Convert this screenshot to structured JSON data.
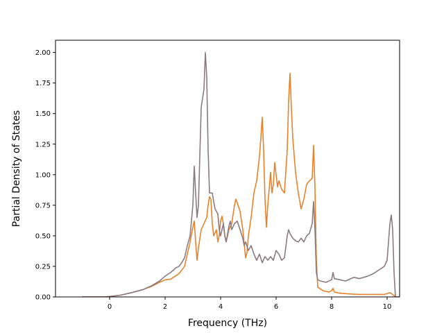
{
  "chart_data": {
    "type": "line",
    "title": "",
    "xlabel": "Frequency (THz)",
    "ylabel": "Partial Density of States",
    "xlim": [
      -1.95,
      10.45
    ],
    "ylim": [
      0,
      2.1
    ],
    "x_ticks": [
      0,
      2,
      4,
      6,
      8,
      10
    ],
    "x_tick_labels": [
      "0",
      "2",
      "4",
      "6",
      "8",
      "10"
    ],
    "y_ticks": [
      0,
      0.25,
      0.5,
      0.75,
      1.0,
      1.25,
      1.5,
      1.75,
      2.0
    ],
    "y_tick_labels": [
      "0.00",
      "0.25",
      "0.50",
      "0.75",
      "1.00",
      "1.25",
      "1.50",
      "1.75",
      "2.00"
    ],
    "grid": false,
    "legend": "none",
    "series": [
      {
        "color": "#e8822a",
        "points": [
          [
            -1.0,
            0.0
          ],
          [
            -0.2,
            0.0
          ],
          [
            0.0,
            0.003
          ],
          [
            0.4,
            0.015
          ],
          [
            0.8,
            0.035
          ],
          [
            1.2,
            0.06
          ],
          [
            1.5,
            0.085
          ],
          [
            1.8,
            0.12
          ],
          [
            2.0,
            0.14
          ],
          [
            2.2,
            0.145
          ],
          [
            2.5,
            0.19
          ],
          [
            2.7,
            0.25
          ],
          [
            2.8,
            0.35
          ],
          [
            2.9,
            0.45
          ],
          [
            3.0,
            0.57
          ],
          [
            3.05,
            0.62
          ],
          [
            3.1,
            0.45
          ],
          [
            3.15,
            0.3
          ],
          [
            3.2,
            0.4
          ],
          [
            3.3,
            0.55
          ],
          [
            3.4,
            0.6
          ],
          [
            3.5,
            0.65
          ],
          [
            3.55,
            0.75
          ],
          [
            3.6,
            0.82
          ],
          [
            3.65,
            0.8
          ],
          [
            3.7,
            0.6
          ],
          [
            3.75,
            0.5
          ],
          [
            3.85,
            0.55
          ],
          [
            3.9,
            0.45
          ],
          [
            3.95,
            0.5
          ],
          [
            4.0,
            0.62
          ],
          [
            4.05,
            0.66
          ],
          [
            4.1,
            0.6
          ],
          [
            4.15,
            0.5
          ],
          [
            4.2,
            0.45
          ],
          [
            4.3,
            0.55
          ],
          [
            4.4,
            0.6
          ],
          [
            4.5,
            0.75
          ],
          [
            4.55,
            0.8
          ],
          [
            4.6,
            0.77
          ],
          [
            4.7,
            0.7
          ],
          [
            4.8,
            0.55
          ],
          [
            4.9,
            0.32
          ],
          [
            4.95,
            0.36
          ],
          [
            5.0,
            0.5
          ],
          [
            5.1,
            0.65
          ],
          [
            5.2,
            0.85
          ],
          [
            5.3,
            0.95
          ],
          [
            5.4,
            1.15
          ],
          [
            5.45,
            1.3
          ],
          [
            5.5,
            1.47
          ],
          [
            5.55,
            1.2
          ],
          [
            5.6,
            0.8
          ],
          [
            5.65,
            0.57
          ],
          [
            5.7,
            0.75
          ],
          [
            5.8,
            1.02
          ],
          [
            5.85,
            0.85
          ],
          [
            5.9,
            0.92
          ],
          [
            5.95,
            1.1
          ],
          [
            6.0,
            1.0
          ],
          [
            6.05,
            0.9
          ],
          [
            6.1,
            0.95
          ],
          [
            6.2,
            0.88
          ],
          [
            6.3,
            0.85
          ],
          [
            6.4,
            1.2
          ],
          [
            6.45,
            1.6
          ],
          [
            6.5,
            1.83
          ],
          [
            6.55,
            1.55
          ],
          [
            6.6,
            1.3
          ],
          [
            6.7,
            1.02
          ],
          [
            6.8,
            0.85
          ],
          [
            6.9,
            0.72
          ],
          [
            7.0,
            0.8
          ],
          [
            7.1,
            0.92
          ],
          [
            7.2,
            0.95
          ],
          [
            7.3,
            0.97
          ],
          [
            7.35,
            1.24
          ],
          [
            7.4,
            0.9
          ],
          [
            7.45,
            0.3
          ],
          [
            7.5,
            0.08
          ],
          [
            7.7,
            0.05
          ],
          [
            7.9,
            0.04
          ],
          [
            8.0,
            0.05
          ],
          [
            8.05,
            0.07
          ],
          [
            8.1,
            0.04
          ],
          [
            8.3,
            0.03
          ],
          [
            8.6,
            0.025
          ],
          [
            9.0,
            0.02
          ],
          [
            9.5,
            0.02
          ],
          [
            9.9,
            0.02
          ],
          [
            10.1,
            0.035
          ],
          [
            10.2,
            0.02
          ],
          [
            10.3,
            0.0
          ],
          [
            11.3,
            0.0
          ]
        ]
      },
      {
        "color": "#8a7a80",
        "points": [
          [
            -1.0,
            0.0
          ],
          [
            -0.2,
            0.0
          ],
          [
            0.0,
            0.003
          ],
          [
            0.4,
            0.015
          ],
          [
            0.8,
            0.035
          ],
          [
            1.2,
            0.06
          ],
          [
            1.5,
            0.09
          ],
          [
            1.8,
            0.13
          ],
          [
            2.0,
            0.17
          ],
          [
            2.2,
            0.2
          ],
          [
            2.4,
            0.24
          ],
          [
            2.5,
            0.25
          ],
          [
            2.6,
            0.28
          ],
          [
            2.7,
            0.32
          ],
          [
            2.8,
            0.42
          ],
          [
            2.9,
            0.5
          ],
          [
            3.0,
            0.75
          ],
          [
            3.05,
            1.07
          ],
          [
            3.1,
            0.85
          ],
          [
            3.15,
            0.65
          ],
          [
            3.2,
            0.75
          ],
          [
            3.3,
            1.55
          ],
          [
            3.4,
            1.7
          ],
          [
            3.45,
            2.0
          ],
          [
            3.5,
            1.8
          ],
          [
            3.55,
            1.2
          ],
          [
            3.6,
            0.85
          ],
          [
            3.7,
            0.85
          ],
          [
            3.75,
            0.78
          ],
          [
            3.8,
            0.72
          ],
          [
            3.9,
            0.68
          ],
          [
            3.95,
            0.55
          ],
          [
            4.0,
            0.5
          ],
          [
            4.05,
            0.55
          ],
          [
            4.1,
            0.6
          ],
          [
            4.15,
            0.5
          ],
          [
            4.2,
            0.45
          ],
          [
            4.3,
            0.58
          ],
          [
            4.35,
            0.62
          ],
          [
            4.4,
            0.55
          ],
          [
            4.5,
            0.6
          ],
          [
            4.6,
            0.62
          ],
          [
            4.7,
            0.55
          ],
          [
            4.8,
            0.48
          ],
          [
            4.85,
            0.42
          ],
          [
            4.9,
            0.45
          ],
          [
            5.0,
            0.38
          ],
          [
            5.1,
            0.42
          ],
          [
            5.2,
            0.35
          ],
          [
            5.3,
            0.3
          ],
          [
            5.4,
            0.35
          ],
          [
            5.5,
            0.28
          ],
          [
            5.6,
            0.33
          ],
          [
            5.7,
            0.3
          ],
          [
            5.8,
            0.33
          ],
          [
            5.9,
            0.3
          ],
          [
            6.0,
            0.38
          ],
          [
            6.1,
            0.35
          ],
          [
            6.2,
            0.3
          ],
          [
            6.3,
            0.32
          ],
          [
            6.4,
            0.5
          ],
          [
            6.45,
            0.55
          ],
          [
            6.5,
            0.52
          ],
          [
            6.6,
            0.48
          ],
          [
            6.7,
            0.46
          ],
          [
            6.8,
            0.45
          ],
          [
            6.9,
            0.48
          ],
          [
            7.0,
            0.45
          ],
          [
            7.1,
            0.5
          ],
          [
            7.2,
            0.52
          ],
          [
            7.3,
            0.6
          ],
          [
            7.35,
            0.78
          ],
          [
            7.4,
            0.55
          ],
          [
            7.45,
            0.2
          ],
          [
            7.5,
            0.14
          ],
          [
            7.6,
            0.13
          ],
          [
            7.8,
            0.12
          ],
          [
            8.0,
            0.14
          ],
          [
            8.05,
            0.2
          ],
          [
            8.1,
            0.15
          ],
          [
            8.3,
            0.14
          ],
          [
            8.5,
            0.13
          ],
          [
            8.8,
            0.16
          ],
          [
            9.0,
            0.15
          ],
          [
            9.3,
            0.17
          ],
          [
            9.5,
            0.19
          ],
          [
            9.7,
            0.22
          ],
          [
            9.9,
            0.25
          ],
          [
            10.0,
            0.3
          ],
          [
            10.05,
            0.45
          ],
          [
            10.1,
            0.6
          ],
          [
            10.15,
            0.67
          ],
          [
            10.2,
            0.55
          ],
          [
            10.25,
            0.2
          ],
          [
            10.3,
            0.0
          ],
          [
            11.3,
            0.0
          ]
        ]
      }
    ]
  }
}
